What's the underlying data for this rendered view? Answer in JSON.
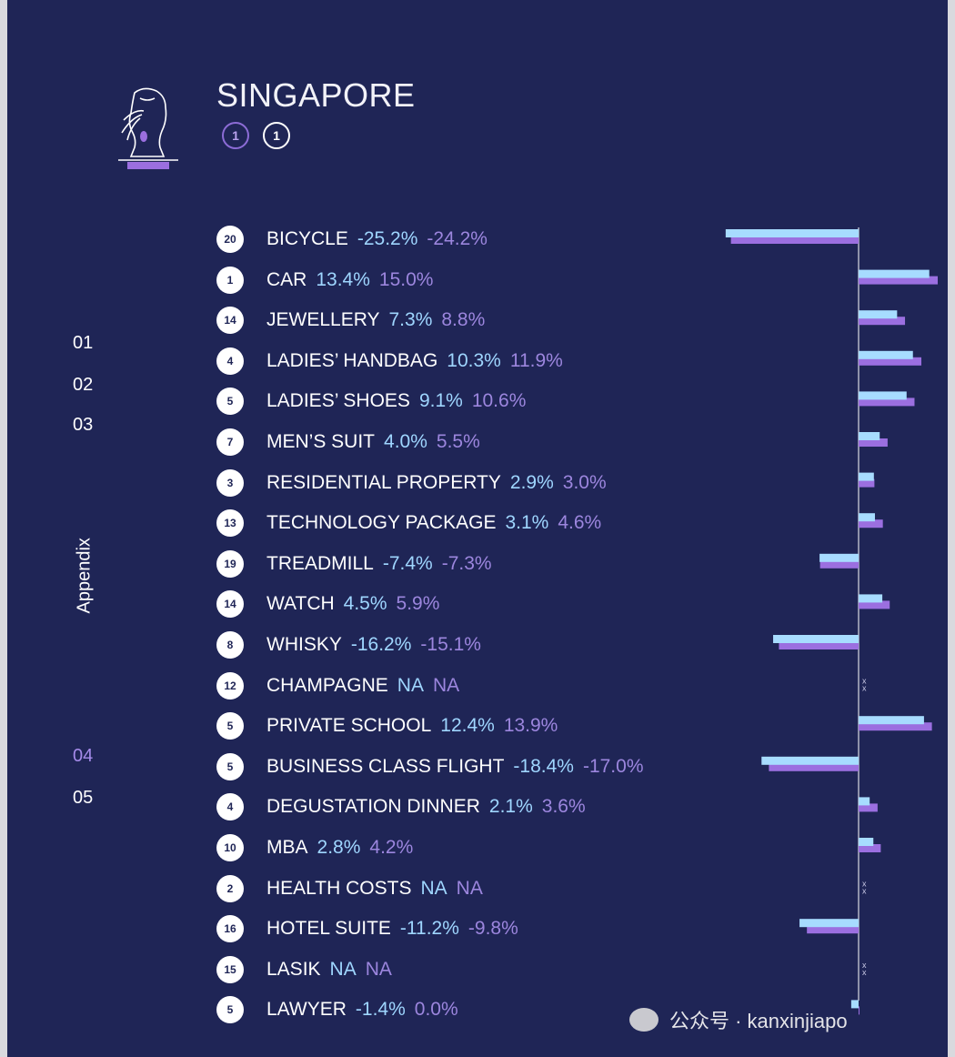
{
  "header": {
    "country": "SINGAPORE",
    "rank_a": "1",
    "rank_b": "1"
  },
  "nav": {
    "items": [
      "01",
      "02",
      "03",
      "04",
      "05"
    ],
    "appendix": "Appendix",
    "active_index": 3
  },
  "watermark": "公众号 · kanxinjiapo",
  "colors": {
    "background": "#1f2556",
    "series_1": "#a7dcff",
    "series_2": "#9b6fe0",
    "label": "#ffffff"
  },
  "chart_data": {
    "type": "bar",
    "orientation": "horizontal",
    "categories": [
      "BICYCLE",
      "CAR",
      "JEWELLERY",
      "LADIES’ HANDBAG",
      "LADIES’ SHOES",
      "MEN’S SUIT",
      "RESIDENTIAL PROPERTY",
      "TECHNOLOGY PACKAGE",
      "TREADMILL",
      "WATCH",
      "WHISKY",
      "CHAMPAGNE",
      "PRIVATE SCHOOL",
      "BUSINESS CLASS FLIGHT",
      "DEGUSTATION DINNER",
      "MBA",
      "HEALTH COSTS",
      "HOTEL SUITE",
      "LASIK",
      "LAWYER"
    ],
    "ranks": [
      "20",
      "1",
      "14",
      "4",
      "5",
      "7",
      "3",
      "13",
      "19",
      "14",
      "8",
      "12",
      "5",
      "5",
      "4",
      "10",
      "2",
      "16",
      "15",
      "5"
    ],
    "series": [
      {
        "values": [
          -25.2,
          13.4,
          7.3,
          10.3,
          9.1,
          4.0,
          2.9,
          3.1,
          -7.4,
          4.5,
          -16.2,
          null,
          12.4,
          -18.4,
          2.1,
          2.8,
          null,
          -11.2,
          null,
          -1.4
        ],
        "labels": [
          "-25.2%",
          "13.4%",
          "7.3%",
          "10.3%",
          "9.1%",
          "4.0%",
          "2.9%",
          "3.1%",
          "-7.4%",
          "4.5%",
          "-16.2%",
          "NA",
          "12.4%",
          "-18.4%",
          "2.1%",
          "2.8%",
          "NA",
          "-11.2%",
          "NA",
          "-1.4%"
        ]
      },
      {
        "values": [
          -24.2,
          15.0,
          8.8,
          11.9,
          10.6,
          5.5,
          3.0,
          4.6,
          -7.3,
          5.9,
          -15.1,
          null,
          13.9,
          -17.0,
          3.6,
          4.2,
          null,
          -9.8,
          null,
          0.0
        ],
        "labels": [
          "-24.2%",
          "15.0%",
          "8.8%",
          "11.9%",
          "10.6%",
          "5.5%",
          "3.0%",
          "4.6%",
          "-7.3%",
          "5.9%",
          "-15.1%",
          "NA",
          "13.9%",
          "-17.0%",
          "3.6%",
          "4.2%",
          "NA",
          "-9.8%",
          "NA",
          "0.0%"
        ]
      }
    ],
    "na_marker": "x"
  }
}
